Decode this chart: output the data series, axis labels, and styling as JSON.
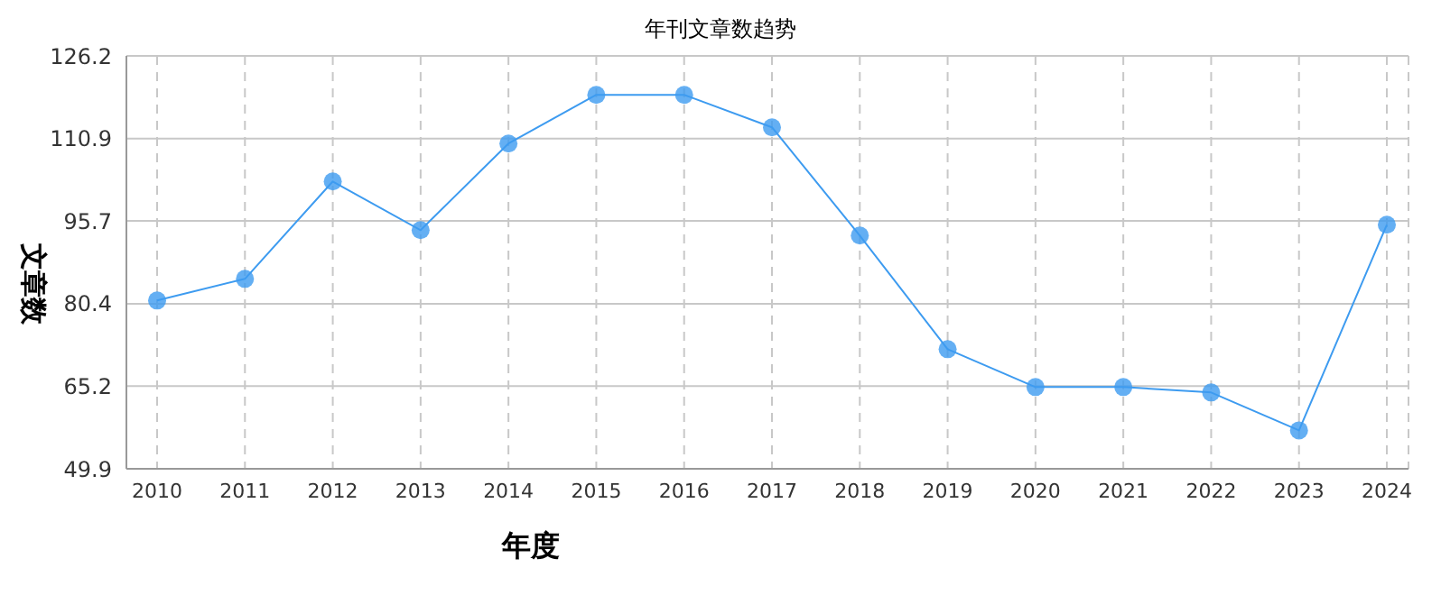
{
  "chart_data": {
    "type": "line",
    "title": "年刊文章数趋势",
    "xlabel": "年度",
    "ylabel": "文章数",
    "categories": [
      "2010",
      "2011",
      "2012",
      "2013",
      "2014",
      "2015",
      "2016",
      "2017",
      "2018",
      "2019",
      "2020",
      "2021",
      "2022",
      "2023",
      "2024"
    ],
    "series": [
      {
        "color": "#3d9bf0",
        "values": [
          81,
          85,
          103,
          94,
          110,
          119,
          119,
          113,
          93,
          72,
          65,
          65,
          64,
          57,
          95
        ]
      }
    ],
    "ylim": [
      49.9,
      126.2
    ],
    "yticks": [
      49.9,
      65.2,
      80.4,
      95.7,
      110.9,
      126.2
    ],
    "grid": true,
    "marker": "circle",
    "line_style": "solid"
  }
}
